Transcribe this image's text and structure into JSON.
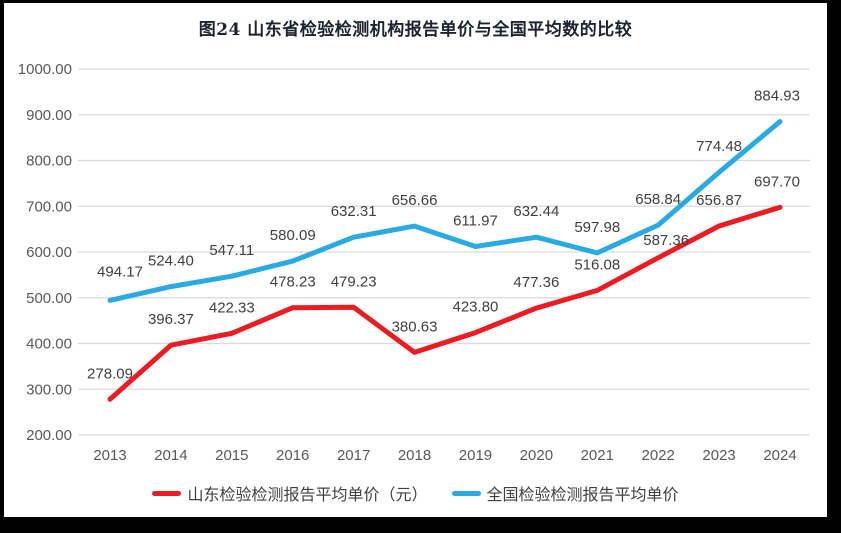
{
  "chart_data": {
    "type": "line",
    "title": "图24  山东省检验检测机构报告单价与全国平均数的比较",
    "categories": [
      "2013",
      "2014",
      "2015",
      "2016",
      "2017",
      "2018",
      "2019",
      "2020",
      "2021",
      "2022",
      "2023",
      "2024"
    ],
    "series": [
      {
        "name": "山东检验检测报告平均单价（元）",
        "color": "#eb1c22",
        "values": [
          278.09,
          396.37,
          422.33,
          478.23,
          479.23,
          380.63,
          423.8,
          477.36,
          516.08,
          587.36,
          656.87,
          697.7
        ]
      },
      {
        "name": "全国检验检测报告平均单价",
        "color": "#29abe2",
        "values": [
          494.17,
          524.4,
          547.11,
          580.09,
          632.31,
          656.66,
          611.97,
          632.44,
          597.98,
          658.84,
          774.48,
          884.93
        ]
      }
    ],
    "y_axis": {
      "min": 200,
      "max": 1000,
      "step": 100,
      "tick_format": "two-decimals"
    },
    "x_label": "",
    "y_label": "",
    "grid": true,
    "data_labels": true,
    "legend_position": "bottom",
    "label_offsets": {
      "0-9": [
        8,
        8
      ],
      "1-0": [
        10,
        -3
      ],
      "0-11": [
        -3,
        0
      ],
      "1-11": [
        -3,
        0
      ]
    },
    "colors": {
      "grid_line": "#d9d9d9",
      "tick_text": "#595959",
      "data_label_text": "#404040",
      "background": "#ffffff",
      "frame": "#000000"
    },
    "legend": [
      {
        "label": "山东检验检测报告平均单价（元）",
        "color": "#eb1c22"
      },
      {
        "label": "全国检验检测报告平均单价",
        "color": "#29abe2"
      }
    ]
  }
}
